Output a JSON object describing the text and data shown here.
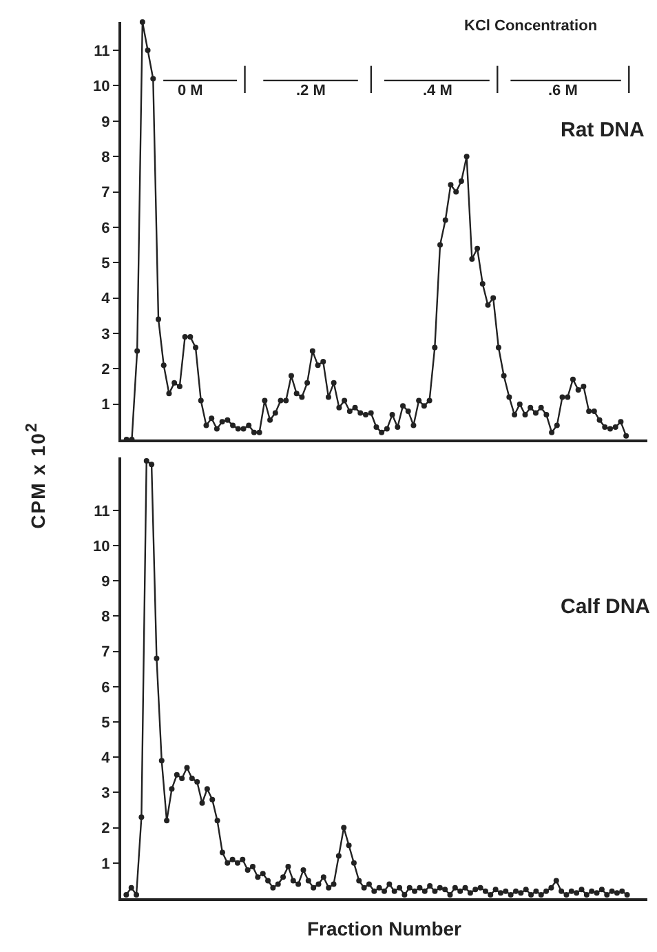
{
  "chart_data": [
    {
      "type": "line",
      "ylabel": "CPM x 10$^{2}$",
      "categories": [
        null,
        null,
        null,
        null,
        null,
        null,
        null,
        null,
        null,
        null,
        null,
        null,
        null,
        null,
        null,
        null,
        null,
        null,
        null,
        null,
        null,
        null,
        null,
        null,
        null,
        null,
        null,
        null,
        null,
        null,
        null,
        null,
        null,
        null,
        null,
        null,
        null,
        null,
        null,
        null,
        null,
        null,
        null,
        null,
        null,
        null,
        null,
        null,
        null,
        null,
        null,
        null,
        null,
        null,
        null,
        null,
        null,
        null,
        null,
        null,
        null,
        null,
        null,
        null,
        null,
        null,
        null,
        null,
        null,
        null,
        null,
        null,
        null,
        null,
        null,
        null,
        null,
        null,
        null,
        null,
        null,
        null,
        null,
        null,
        null,
        null,
        null,
        null,
        null,
        null,
        null,
        null,
        null,
        null,
        null
      ],
      "series": [
        {
          "color": "#222222",
          "values": [
            0,
            0,
            2.5,
            11.8,
            11,
            10.2,
            3.4,
            2.1,
            1.3,
            1.6,
            1.5,
            2.9,
            2.9,
            2.6,
            1.1,
            0.4,
            0.6,
            0.3,
            0.5,
            0.55,
            0.4,
            0.3,
            0.3,
            0.4,
            0.2,
            0.2,
            1.1,
            0.55,
            0.75,
            1.1,
            1.1,
            1.8,
            1.3,
            1.2,
            1.6,
            2.5,
            2.1,
            2.2,
            1.2,
            1.6,
            0.9,
            1.1,
            0.8,
            0.9,
            0.75,
            0.7,
            0.75,
            0.35,
            0.2,
            0.3,
            0.7,
            0.35,
            0.95,
            0.8,
            0.4,
            1.1,
            0.95,
            1.1,
            2.6,
            5.5,
            6.2,
            7.2,
            7,
            7.3,
            8,
            5.1,
            5.4,
            4.4,
            3.8,
            4,
            2.6,
            1.8,
            1.2,
            0.7,
            1,
            0.7,
            0.9,
            0.75,
            0.9,
            0.7,
            0.2,
            0.4,
            1.2,
            1.2,
            1.7,
            1.4,
            1.5,
            0.8,
            0.8,
            0.55,
            0.35,
            0.3,
            0.35,
            0.5,
            0.1
          ]
        }
      ],
      "ylim": [
        0,
        11.8
      ],
      "yticks": [
        1,
        2,
        3,
        4,
        5,
        6,
        7,
        8,
        9,
        10,
        11
      ],
      "grid": false,
      "marker": "circle",
      "line_style": "solid",
      "annotations": [
        "KCl Concentration",
        "0 M",
        ".2 M",
        ".4 M",
        ".6 M",
        "Rat DNA"
      ]
    },
    {
      "type": "line",
      "xlabel": "Fraction Number",
      "categories": [
        null,
        null,
        null,
        null,
        null,
        null,
        null,
        null,
        null,
        null,
        null,
        null,
        null,
        null,
        null,
        null,
        null,
        null,
        null,
        null,
        null,
        null,
        null,
        null,
        null,
        null,
        null,
        null,
        null,
        null,
        null,
        null,
        null,
        null,
        null,
        null,
        null,
        null,
        null,
        null,
        null,
        null,
        null,
        null,
        null,
        null,
        null,
        null,
        null,
        null,
        null,
        null,
        null,
        null,
        null,
        null,
        null,
        null,
        null,
        null,
        null,
        null,
        null,
        null,
        null,
        null,
        null,
        null,
        null,
        null,
        null,
        null,
        null,
        null,
        null,
        null,
        null,
        null,
        null,
        null,
        null,
        null,
        null,
        null,
        null,
        null,
        null,
        null,
        null,
        null,
        null,
        null,
        null,
        null,
        null,
        null,
        null,
        null,
        null,
        null
      ],
      "series": [
        {
          "color": "#222222",
          "values": [
            0.1,
            0.3,
            0.1,
            2.3,
            12.4,
            12.3,
            6.8,
            3.9,
            2.2,
            3.1,
            3.5,
            3.4,
            3.7,
            3.4,
            3.3,
            2.7,
            3.1,
            2.8,
            2.2,
            1.3,
            1,
            1.1,
            1,
            1.1,
            0.8,
            0.9,
            0.6,
            0.7,
            0.5,
            0.3,
            0.4,
            0.6,
            0.9,
            0.5,
            0.4,
            0.8,
            0.5,
            0.3,
            0.4,
            0.6,
            0.3,
            0.4,
            1.2,
            2,
            1.5,
            1,
            0.5,
            0.3,
            0.4,
            0.2,
            0.3,
            0.2,
            0.4,
            0.2,
            0.3,
            0.1,
            0.3,
            0.2,
            0.3,
            0.2,
            0.35,
            0.2,
            0.3,
            0.25,
            0.1,
            0.3,
            0.2,
            0.3,
            0.15,
            0.25,
            0.3,
            0.2,
            0.1,
            0.25,
            0.15,
            0.2,
            0.1,
            0.2,
            0.15,
            0.25,
            0.1,
            0.2,
            0.1,
            0.2,
            0.3,
            0.5,
            0.2,
            0.1,
            0.2,
            0.15,
            0.25,
            0.1,
            0.2,
            0.15,
            0.25,
            0.1,
            0.2,
            0.15,
            0.2,
            0.1
          ]
        }
      ],
      "ylim": [
        0,
        12.5
      ],
      "yticks": [
        1,
        2,
        3,
        4,
        5,
        6,
        7,
        8,
        9,
        10,
        11
      ],
      "grid": false,
      "marker": "circle",
      "line_style": "solid",
      "annotations": [
        "Calf DNA"
      ]
    }
  ]
}
